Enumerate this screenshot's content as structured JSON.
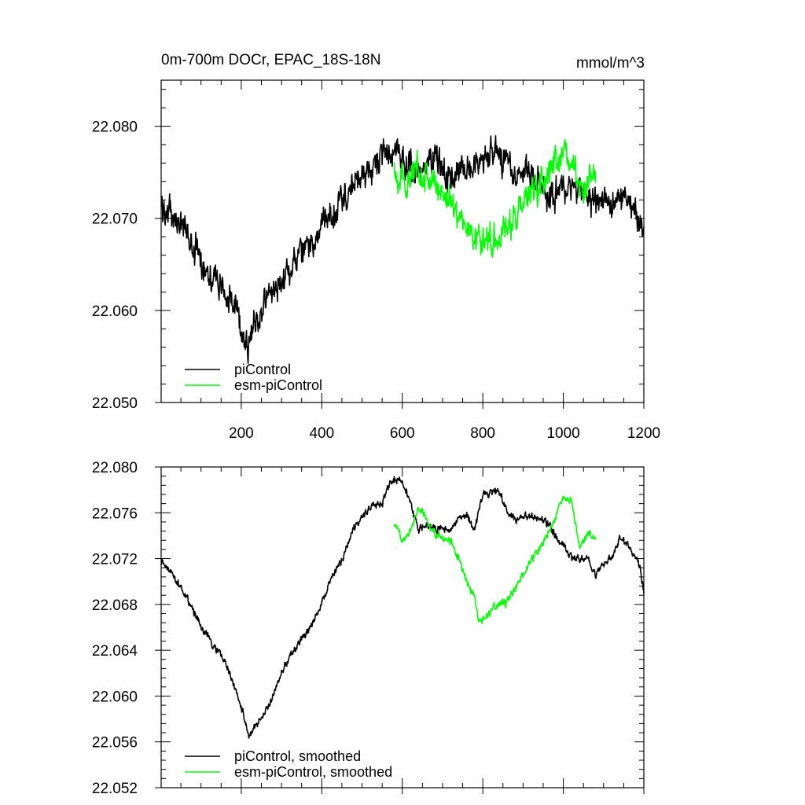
{
  "chart_data": [
    {
      "type": "line",
      "title": "0m-700m DOCr, EPAC_18S-18N",
      "units": "mmol/m^3",
      "xlim": [
        1,
        1200
      ],
      "ylim": [
        22.05,
        22.085
      ],
      "x_ticks": [
        200,
        400,
        600,
        800,
        1000,
        1200
      ],
      "x_tick_labels": [
        "200",
        "400",
        "600",
        "800",
        "1000",
        "1200"
      ],
      "y_ticks": [
        22.05,
        22.06,
        22.07,
        22.08
      ],
      "y_tick_labels": [
        "22.050",
        "22.060",
        "22.070",
        "22.080"
      ],
      "legend": "bottom-left",
      "series": [
        {
          "name": "piControl",
          "color": "#000000",
          "noise": 0.0022,
          "x": [
            1,
            25,
            50,
            75,
            100,
            125,
            150,
            175,
            200,
            215,
            230,
            260,
            300,
            350,
            400,
            450,
            500,
            550,
            580,
            600,
            640,
            680,
            720,
            760,
            800,
            840,
            880,
            920,
            960,
            1000,
            1040,
            1080,
            1120,
            1160,
            1200
          ],
          "y": [
            22.0712,
            22.0705,
            22.0695,
            22.0675,
            22.0655,
            22.064,
            22.0625,
            22.061,
            22.0585,
            22.056,
            22.058,
            22.061,
            22.0635,
            22.066,
            22.069,
            22.072,
            22.0745,
            22.0765,
            22.0775,
            22.0762,
            22.0745,
            22.077,
            22.0745,
            22.0755,
            22.077,
            22.0765,
            22.075,
            22.0752,
            22.072,
            22.0735,
            22.0725,
            22.0715,
            22.072,
            22.0718,
            22.069
          ]
        },
        {
          "name": "esm-piControl",
          "color": "#00ff00",
          "noise": 0.0022,
          "x": [
            580,
            600,
            620,
            640,
            660,
            680,
            700,
            720,
            740,
            760,
            780,
            800,
            820,
            840,
            860,
            880,
            900,
            920,
            940,
            960,
            980,
            1000,
            1020,
            1040,
            1060,
            1080
          ],
          "y": [
            22.0755,
            22.074,
            22.074,
            22.0755,
            22.0748,
            22.0735,
            22.073,
            22.072,
            22.0705,
            22.069,
            22.068,
            22.0675,
            22.068,
            22.068,
            22.069,
            22.07,
            22.0715,
            22.0725,
            22.0735,
            22.075,
            22.076,
            22.0775,
            22.076,
            22.073,
            22.074,
            22.0745
          ]
        }
      ]
    },
    {
      "type": "line",
      "title": "",
      "ylim": [
        22.052,
        22.08
      ],
      "xlim": [
        1,
        1200
      ],
      "y_ticks": [
        22.052,
        22.056,
        22.06,
        22.064,
        22.068,
        22.072,
        22.076,
        22.08
      ],
      "y_tick_labels": [
        "22.052",
        "22.056",
        "22.060",
        "22.064",
        "22.068",
        "22.072",
        "22.076",
        "22.080"
      ],
      "x_ticks": [
        200,
        400,
        600,
        800,
        1000,
        1200
      ],
      "legend": "bottom-left",
      "series": [
        {
          "name": "piControl, smoothed",
          "color": "#000000",
          "noise": 0.00045,
          "x": [
            1,
            20,
            40,
            60,
            80,
            100,
            120,
            140,
            160,
            180,
            200,
            220,
            250,
            280,
            300,
            320,
            350,
            380,
            400,
            420,
            450,
            480,
            500,
            520,
            550,
            570,
            590,
            610,
            640,
            660,
            690,
            720,
            740,
            760,
            780,
            800,
            820,
            840,
            860,
            880,
            900,
            940,
            960,
            980,
            1000,
            1020,
            1060,
            1080,
            1100,
            1120,
            1140,
            1160,
            1180,
            1190,
            1200
          ],
          "y": [
            22.0718,
            22.0712,
            22.07,
            22.069,
            22.0675,
            22.066,
            22.065,
            22.064,
            22.063,
            22.061,
            22.059,
            22.0565,
            22.058,
            22.06,
            22.062,
            22.0635,
            22.065,
            22.0665,
            22.068,
            22.07,
            22.072,
            22.0745,
            22.0755,
            22.0765,
            22.077,
            22.0785,
            22.079,
            22.078,
            22.0745,
            22.075,
            22.0745,
            22.0745,
            22.0755,
            22.0758,
            22.0745,
            22.0775,
            22.0778,
            22.078,
            22.076,
            22.0755,
            22.0758,
            22.0755,
            22.075,
            22.074,
            22.073,
            22.072,
            22.072,
            22.0705,
            22.0715,
            22.072,
            22.074,
            22.073,
            22.0722,
            22.0712,
            22.069
          ]
        },
        {
          "name": "esm-piControl, smoothed",
          "color": "#00ff00",
          "noise": 0.00045,
          "x": [
            580,
            600,
            620,
            640,
            660,
            680,
            700,
            720,
            740,
            760,
            780,
            790,
            800,
            820,
            840,
            860,
            880,
            900,
            920,
            940,
            960,
            980,
            1000,
            1020,
            1040,
            1060,
            1080
          ],
          "y": [
            22.075,
            22.0738,
            22.0745,
            22.0765,
            22.0755,
            22.0742,
            22.0738,
            22.0735,
            22.072,
            22.07,
            22.0685,
            22.0665,
            22.0665,
            22.0675,
            22.068,
            22.0682,
            22.0695,
            22.0705,
            22.0718,
            22.0728,
            22.074,
            22.0755,
            22.0775,
            22.077,
            22.073,
            22.0742,
            22.074
          ]
        }
      ]
    }
  ]
}
